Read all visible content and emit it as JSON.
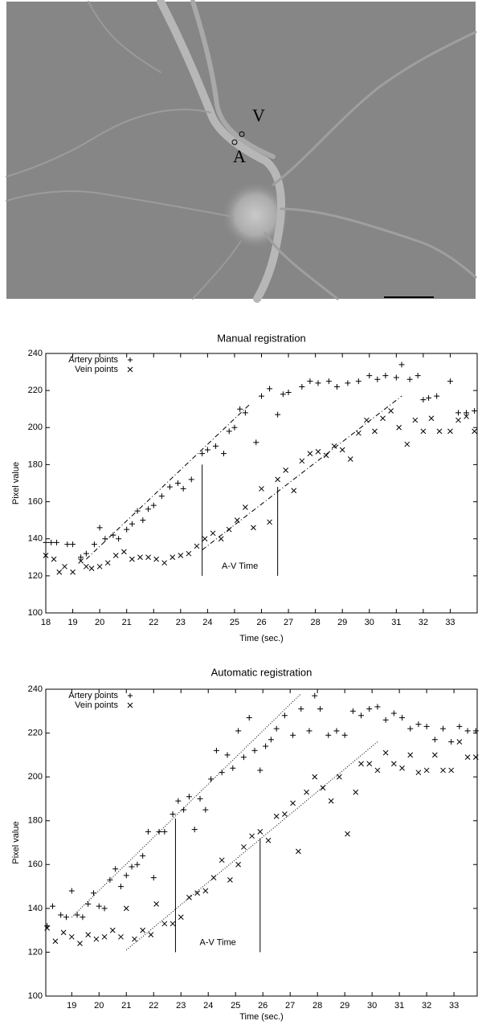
{
  "figure": {
    "labels": [
      "V",
      "A"
    ]
  },
  "chart_data": [
    {
      "type": "scatter",
      "title": "Manual registration",
      "x_label": "Time (sec.)",
      "y_label": "Pixel value",
      "xlim": [
        18,
        34
      ],
      "xticks": [
        18,
        19,
        20,
        21,
        22,
        23,
        24,
        25,
        26,
        27,
        28,
        29,
        30,
        31,
        32,
        33
      ],
      "ylim": [
        100,
        240
      ],
      "yticks": [
        100,
        120,
        140,
        160,
        180,
        200,
        220,
        240
      ],
      "legend": "upper left",
      "series": [
        {
          "name": "Artery points",
          "marker": "+",
          "color": "#000000",
          "x": [
            18.0,
            18.2,
            18.4,
            18.8,
            19.0,
            19.3,
            19.5,
            19.8,
            20.0,
            20.2,
            20.5,
            20.7,
            21.0,
            21.2,
            21.4,
            21.6,
            21.8,
            22.0,
            22.3,
            22.6,
            22.9,
            23.1,
            23.4,
            23.8,
            24.0,
            24.3,
            24.6,
            24.8,
            25.0,
            25.2,
            25.4,
            25.8,
            26.0,
            26.3,
            26.6,
            26.8,
            27.0,
            27.5,
            27.8,
            28.1,
            28.5,
            28.8,
            29.2,
            29.6,
            30.0,
            30.3,
            30.6,
            31.0,
            31.2,
            31.5,
            31.8,
            32.0,
            32.2,
            32.5,
            33.0,
            33.3,
            33.6,
            33.9
          ],
          "values": [
            138,
            138,
            138,
            137,
            137,
            130,
            132,
            137,
            146,
            140,
            142,
            140,
            145,
            148,
            155,
            150,
            156,
            158,
            163,
            168,
            170,
            167,
            172,
            186,
            188,
            190,
            186,
            198,
            200,
            210,
            208,
            192,
            217,
            221,
            207,
            218,
            219,
            222,
            225,
            224,
            225,
            222,
            224,
            225,
            228,
            226,
            228,
            227,
            234,
            226,
            228,
            215,
            216,
            217,
            225,
            208,
            208,
            209
          ]
        },
        {
          "name": "Vein points",
          "marker": "x",
          "color": "#000000",
          "x": [
            18.0,
            18.3,
            18.5,
            18.7,
            19.0,
            19.3,
            19.5,
            19.7,
            20.0,
            20.3,
            20.6,
            20.9,
            21.2,
            21.5,
            21.8,
            22.1,
            22.4,
            22.7,
            23.0,
            23.3,
            23.6,
            23.9,
            24.2,
            24.5,
            24.8,
            25.1,
            25.4,
            25.7,
            26.0,
            26.3,
            26.6,
            26.9,
            27.2,
            27.5,
            27.8,
            28.1,
            28.4,
            28.7,
            29.0,
            29.3,
            29.6,
            29.9,
            30.2,
            30.5,
            30.8,
            31.1,
            31.4,
            31.7,
            32.0,
            32.3,
            32.6,
            33.0,
            33.3,
            33.6,
            33.9
          ],
          "values": [
            131,
            129,
            122,
            125,
            122,
            128,
            125,
            124,
            125,
            127,
            131,
            133,
            129,
            130,
            130,
            129,
            127,
            130,
            131,
            132,
            136,
            140,
            143,
            140,
            145,
            150,
            157,
            146,
            167,
            149,
            172,
            177,
            166,
            182,
            186,
            187,
            185,
            190,
            188,
            183,
            197,
            204,
            198,
            205,
            209,
            200,
            191,
            204,
            198,
            205,
            198,
            198,
            204,
            206,
            198
          ]
        }
      ],
      "lines": [
        {
          "x": [
            19.5,
            25.6
          ],
          "values": [
            129,
            213
          ],
          "style": "dashdot"
        },
        {
          "x": [
            23.8,
            31.2
          ],
          "values": [
            134,
            217
          ],
          "style": "dashdot"
        },
        {
          "x": [
            23.8,
            23.8
          ],
          "values": [
            120,
            180
          ],
          "style": "solid"
        },
        {
          "x": [
            26.6,
            26.6
          ],
          "values": [
            120,
            168
          ],
          "style": "solid"
        }
      ],
      "annotation": "A-V Time"
    },
    {
      "type": "scatter",
      "title": "Automatic registration",
      "x_label": "Time (sec.)",
      "y_label": "Pixel value",
      "xlim": [
        18.05,
        33.85
      ],
      "xticks": [
        19,
        20,
        21,
        22,
        23,
        24,
        25,
        26,
        27,
        28,
        29,
        30,
        31,
        32,
        33
      ],
      "ylim": [
        100,
        240
      ],
      "yticks": [
        100,
        120,
        140,
        160,
        180,
        200,
        220,
        240
      ],
      "legend": "upper left",
      "series": [
        {
          "name": "Artery points",
          "marker": "+",
          "color": "#000000",
          "x": [
            18.1,
            18.3,
            18.6,
            18.8,
            19.0,
            19.2,
            19.4,
            19.6,
            19.8,
            20.0,
            20.2,
            20.4,
            20.6,
            20.8,
            21.0,
            21.2,
            21.4,
            21.6,
            21.8,
            22.0,
            22.2,
            22.4,
            22.7,
            22.9,
            23.1,
            23.3,
            23.5,
            23.7,
            23.9,
            24.1,
            24.3,
            24.5,
            24.7,
            24.9,
            25.1,
            25.3,
            25.5,
            25.7,
            25.9,
            26.1,
            26.3,
            26.5,
            26.8,
            27.1,
            27.4,
            27.7,
            27.9,
            28.1,
            28.4,
            28.7,
            29.0,
            29.3,
            29.6,
            29.9,
            30.2,
            30.5,
            30.8,
            31.1,
            31.4,
            31.7,
            32.0,
            32.3,
            32.6,
            32.9,
            33.2,
            33.5,
            33.8
          ],
          "values": [
            132,
            141,
            137,
            136,
            148,
            137,
            136,
            142,
            147,
            141,
            140,
            153,
            158,
            150,
            155,
            159,
            160,
            164,
            175,
            154,
            175,
            175,
            183,
            189,
            185,
            191,
            176,
            190,
            185,
            199,
            212,
            202,
            210,
            204,
            221,
            209,
            227,
            212,
            203,
            214,
            217,
            222,
            228,
            219,
            231,
            221,
            237,
            231,
            219,
            221,
            219,
            230,
            228,
            231,
            232,
            226,
            229,
            227,
            222,
            224,
            223,
            217,
            222,
            216,
            223,
            221,
            221
          ]
        },
        {
          "name": "Vein points",
          "marker": "x",
          "color": "#000000",
          "x": [
            18.1,
            18.4,
            18.7,
            19.0,
            19.3,
            19.6,
            19.9,
            20.2,
            20.5,
            20.8,
            21.0,
            21.3,
            21.6,
            21.9,
            22.1,
            22.4,
            22.7,
            23.0,
            23.3,
            23.6,
            23.9,
            24.2,
            24.5,
            24.8,
            25.1,
            25.3,
            25.6,
            25.9,
            26.2,
            26.5,
            26.8,
            27.1,
            27.3,
            27.6,
            27.9,
            28.2,
            28.5,
            28.8,
            29.1,
            29.4,
            29.6,
            29.9,
            30.2,
            30.5,
            30.8,
            31.1,
            31.4,
            31.7,
            32.0,
            32.3,
            32.6,
            32.9,
            33.2,
            33.5,
            33.8
          ],
          "values": [
            131,
            125,
            129,
            127,
            124,
            128,
            126,
            127,
            130,
            127,
            140,
            126,
            130,
            128,
            142,
            133,
            133,
            136,
            145,
            147,
            148,
            154,
            162,
            153,
            160,
            168,
            173,
            175,
            171,
            182,
            183,
            188,
            166,
            193,
            200,
            195,
            189,
            200,
            174,
            193,
            206,
            206,
            203,
            211,
            206,
            204,
            210,
            202,
            203,
            210,
            203,
            203,
            216,
            209,
            209
          ]
        }
      ],
      "lines": [
        {
          "x": [
            19.0,
            27.4
          ],
          "values": [
            136,
            238
          ],
          "style": "dotted"
        },
        {
          "x": [
            21.0,
            30.2
          ],
          "values": [
            121,
            216
          ],
          "style": "dotted"
        },
        {
          "x": [
            22.8,
            22.8
          ],
          "values": [
            120,
            181
          ],
          "style": "solid"
        },
        {
          "x": [
            25.9,
            25.9
          ],
          "values": [
            120,
            172
          ],
          "style": "solid"
        }
      ],
      "annotation": "A-V Time"
    }
  ]
}
